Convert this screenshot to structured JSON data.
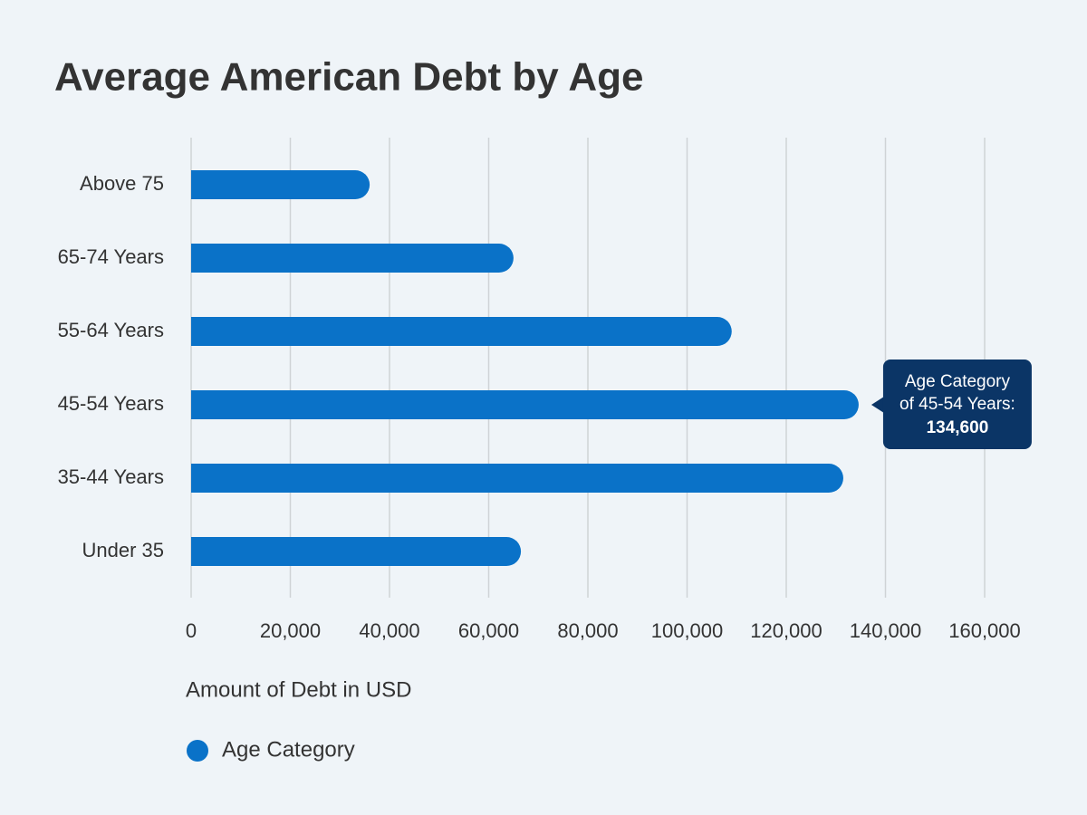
{
  "chart_data": {
    "type": "bar",
    "orientation": "horizontal",
    "title": "Average American Debt by Age",
    "categories": [
      "Above 75",
      "65-74 Years",
      "55-64 Years",
      "45-54 Years",
      "35-44 Years",
      "Under 35"
    ],
    "series": [
      {
        "name": "Age Category",
        "color": "#0a72c8",
        "values": [
          36000,
          65000,
          109000,
          134600,
          131500,
          66500
        ],
        "value_labels": [
          null,
          null,
          null,
          "134,600",
          null,
          null
        ]
      }
    ],
    "tooltip_lines": [
      "Age Category",
      "of 45-54 Years:"
    ],
    "xlim": [
      0,
      160000
    ],
    "xticks": [
      0,
      {
        "value": 20000,
        "label": "20,000"
      },
      {
        "value": 40000,
        "label": "40,000"
      },
      {
        "value": 60000,
        "label": "60,000"
      },
      {
        "value": 80000,
        "label": "80,000"
      },
      {
        "value": 100000,
        "label": "100,000"
      },
      {
        "value": 120000,
        "label": "120,000"
      },
      {
        "value": 140000,
        "label": "140,000"
      },
      {
        "value": 160000,
        "label": "160,000"
      }
    ],
    "xlabel": "Amount of Debt in USD",
    "grid": true
  }
}
